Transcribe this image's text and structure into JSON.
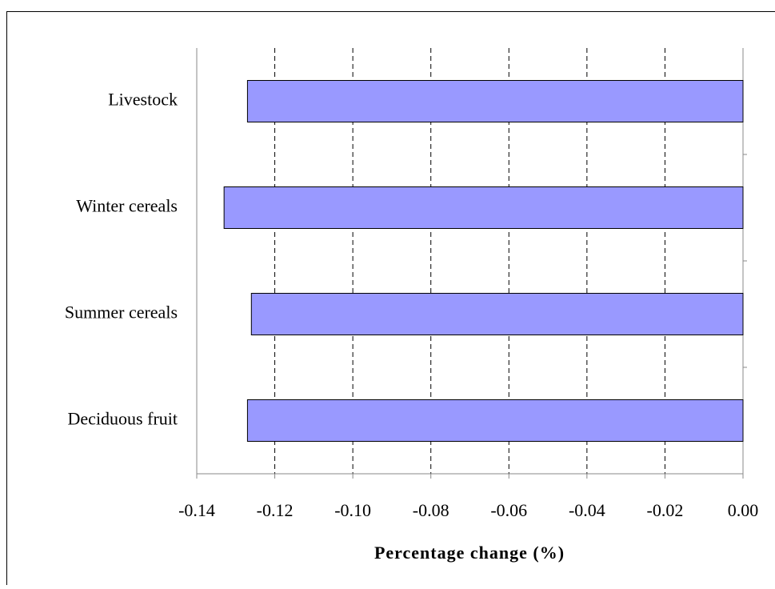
{
  "chart_data": {
    "type": "bar",
    "orientation": "horizontal",
    "categories": [
      "Livestock",
      "Winter cereals",
      "Summer cereals",
      "Deciduous fruit"
    ],
    "values": [
      -0.127,
      -0.133,
      -0.126,
      -0.127
    ],
    "color": "#9999ff",
    "xlabel": "Percentage change (%)",
    "xlim": [
      -0.14,
      0
    ],
    "xticks": [
      -0.14,
      -0.12,
      {
        "value": -0.1,
        "label": "-0.10"
      },
      -0.08,
      -0.06,
      -0.04,
      -0.02,
      {
        "value": 0,
        "label": "0.00"
      }
    ],
    "grid": true
  }
}
